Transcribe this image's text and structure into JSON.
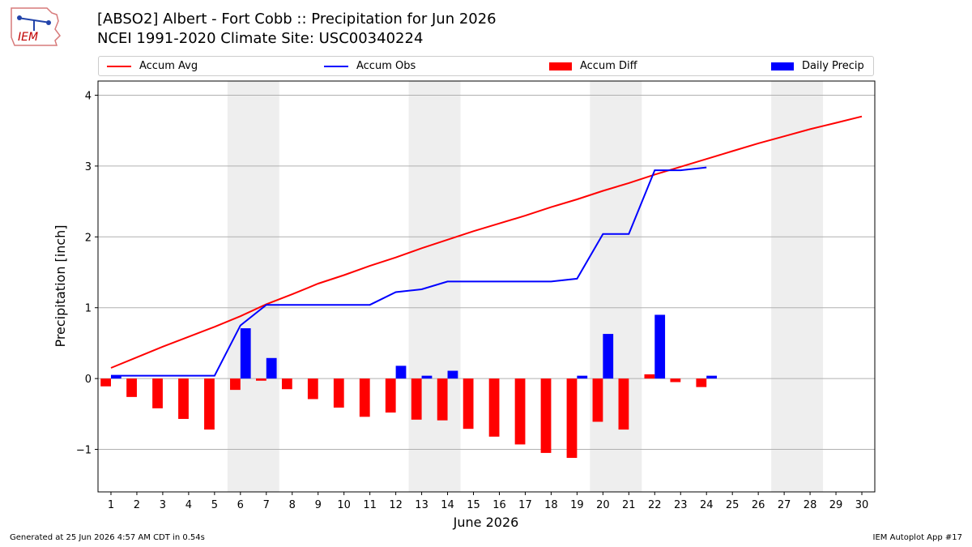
{
  "header": {
    "title_line1": "[ABSO2] Albert - Fort Cobb :: Precipitation for Jun 2026",
    "title_line2": "NCEI 1991-2020 Climate Site: USC00340224"
  },
  "logo": {
    "text": "IEM"
  },
  "footer": {
    "generated": "Generated at 25 Jun 2026 4:57 AM CDT in 0.54s",
    "app": "IEM Autoplot App #17"
  },
  "colors": {
    "avg": "#ff0000",
    "obs": "#0000ff",
    "diff": "#ff0000",
    "daily": "#0000ff",
    "weekend": "#eeeeee"
  },
  "chart_data": {
    "type": "bar",
    "xlabel": "June 2026",
    "ylabel": "Precipitation [inch]",
    "xlim": [
      0.5,
      30.5
    ],
    "ylim": [
      -1.6,
      4.2
    ],
    "x_ticks": [
      1,
      2,
      3,
      4,
      5,
      6,
      7,
      8,
      9,
      10,
      11,
      12,
      13,
      14,
      15,
      16,
      17,
      18,
      19,
      20,
      21,
      22,
      23,
      24,
      25,
      26,
      27,
      28,
      29,
      30
    ],
    "y_ticks": [
      -1,
      0,
      1,
      2,
      3,
      4
    ],
    "y_tick_labels": [
      "−1",
      "0",
      "1",
      "2",
      "3",
      "4"
    ],
    "grid": "horizontal",
    "legend": "top",
    "shaded_days": [
      [
        6,
        7
      ],
      [
        13,
        14
      ],
      [
        20,
        21
      ],
      [
        27,
        28
      ]
    ],
    "series": [
      {
        "name": "Accum Avg",
        "kind": "line",
        "x": [
          1,
          2,
          3,
          4,
          5,
          6,
          7,
          8,
          9,
          10,
          11,
          12,
          13,
          14,
          15,
          16,
          17,
          18,
          19,
          20,
          21,
          22,
          23,
          24,
          25,
          26,
          27,
          28,
          29,
          30
        ],
        "values": [
          0.15,
          0.3,
          0.45,
          0.59,
          0.73,
          0.88,
          1.05,
          1.19,
          1.34,
          1.46,
          1.59,
          1.71,
          1.84,
          1.96,
          2.08,
          2.19,
          2.3,
          2.42,
          2.53,
          2.65,
          2.76,
          2.88,
          2.99,
          3.1,
          3.21,
          3.32,
          3.42,
          3.52,
          3.61,
          3.7
        ]
      },
      {
        "name": "Accum Obs",
        "kind": "line",
        "x": [
          1,
          2,
          3,
          4,
          5,
          6,
          7,
          8,
          9,
          10,
          11,
          12,
          13,
          14,
          15,
          16,
          17,
          18,
          19,
          20,
          21,
          22,
          23,
          24
        ],
        "values": [
          0.04,
          0.04,
          0.04,
          0.04,
          0.04,
          0.75,
          1.04,
          1.04,
          1.04,
          1.04,
          1.04,
          1.22,
          1.26,
          1.37,
          1.37,
          1.37,
          1.37,
          1.37,
          1.41,
          2.04,
          2.04,
          2.94,
          2.94,
          2.98
        ]
      },
      {
        "name": "Accum Diff",
        "kind": "bar",
        "x": [
          1,
          2,
          3,
          4,
          5,
          6,
          7,
          8,
          9,
          10,
          11,
          12,
          13,
          14,
          15,
          16,
          17,
          18,
          19,
          20,
          21,
          22,
          23,
          24
        ],
        "values": [
          -0.11,
          -0.26,
          -0.42,
          -0.57,
          -0.72,
          -0.16,
          -0.03,
          -0.15,
          -0.29,
          -0.41,
          -0.54,
          -0.48,
          -0.58,
          -0.59,
          -0.71,
          -0.82,
          -0.93,
          -1.05,
          -1.12,
          -0.61,
          -0.72,
          0.06,
          -0.05,
          -0.12
        ]
      },
      {
        "name": "Daily Precip",
        "kind": "bar",
        "x": [
          1,
          6,
          7,
          12,
          13,
          14,
          19,
          20,
          22,
          24
        ],
        "values": [
          0.04,
          0.71,
          0.29,
          0.18,
          0.04,
          0.11,
          0.04,
          0.63,
          0.9,
          0.04
        ]
      }
    ]
  }
}
